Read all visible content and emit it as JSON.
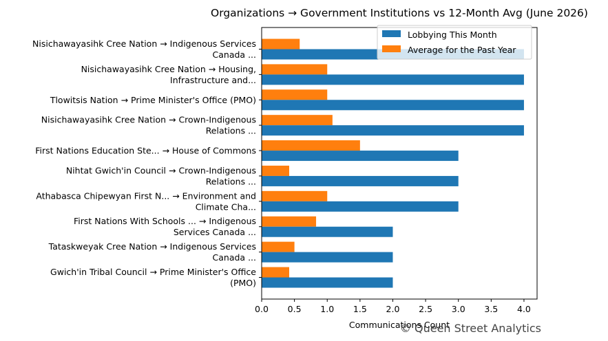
{
  "chart_data": {
    "type": "bar",
    "orientation": "horizontal",
    "title": "Organizations → Government Institutions vs 12-Month Avg (June 2026)",
    "xlabel": "Communications Count",
    "ylabel": "",
    "xlim": [
      0,
      4.2
    ],
    "xticks": [
      "0.0",
      "0.5",
      "1.0",
      "1.5",
      "2.0",
      "2.5",
      "3.0",
      "3.5",
      "4.0"
    ],
    "legend_position": "top-right",
    "grid": false,
    "categories": [
      [
        "Nisichawayasihk Cree Nation → Indigenous Services",
        "Canada ..."
      ],
      [
        "Nisichawayasihk Cree Nation → Housing,",
        "Infrastructure and..."
      ],
      [
        "Tlowitsis Nation → Prime Minister's Office (PMO)"
      ],
      [
        "Nisichawayasihk Cree Nation → Crown-Indigenous",
        "Relations ..."
      ],
      [
        "First Nations Education Ste... → House of Commons"
      ],
      [
        "Nihtat Gwich'in Council → Crown-Indigenous",
        "Relations ..."
      ],
      [
        "Athabasca Chipewyan First N... → Environment and",
        "Climate Cha..."
      ],
      [
        "First Nations With Schools ... → Indigenous",
        "Services Canada ..."
      ],
      [
        "Tataskweyak Cree Nation → Indigenous Services",
        "Canada ..."
      ],
      [
        "Gwich'in Tribal Council → Prime Minister's Office",
        "(PMO)"
      ]
    ],
    "series": [
      {
        "name": "Lobbying This Month",
        "color": "#1f77b4",
        "values": [
          4,
          4,
          4,
          4,
          3,
          3,
          3,
          2,
          2,
          2
        ]
      },
      {
        "name": "Average for the Past Year",
        "color": "#ff7f0e",
        "values": [
          0.58,
          1.0,
          1.0,
          1.08,
          1.5,
          0.42,
          1.0,
          0.83,
          0.5,
          0.42
        ]
      }
    ]
  },
  "watermark": "© Queen Street Analytics"
}
